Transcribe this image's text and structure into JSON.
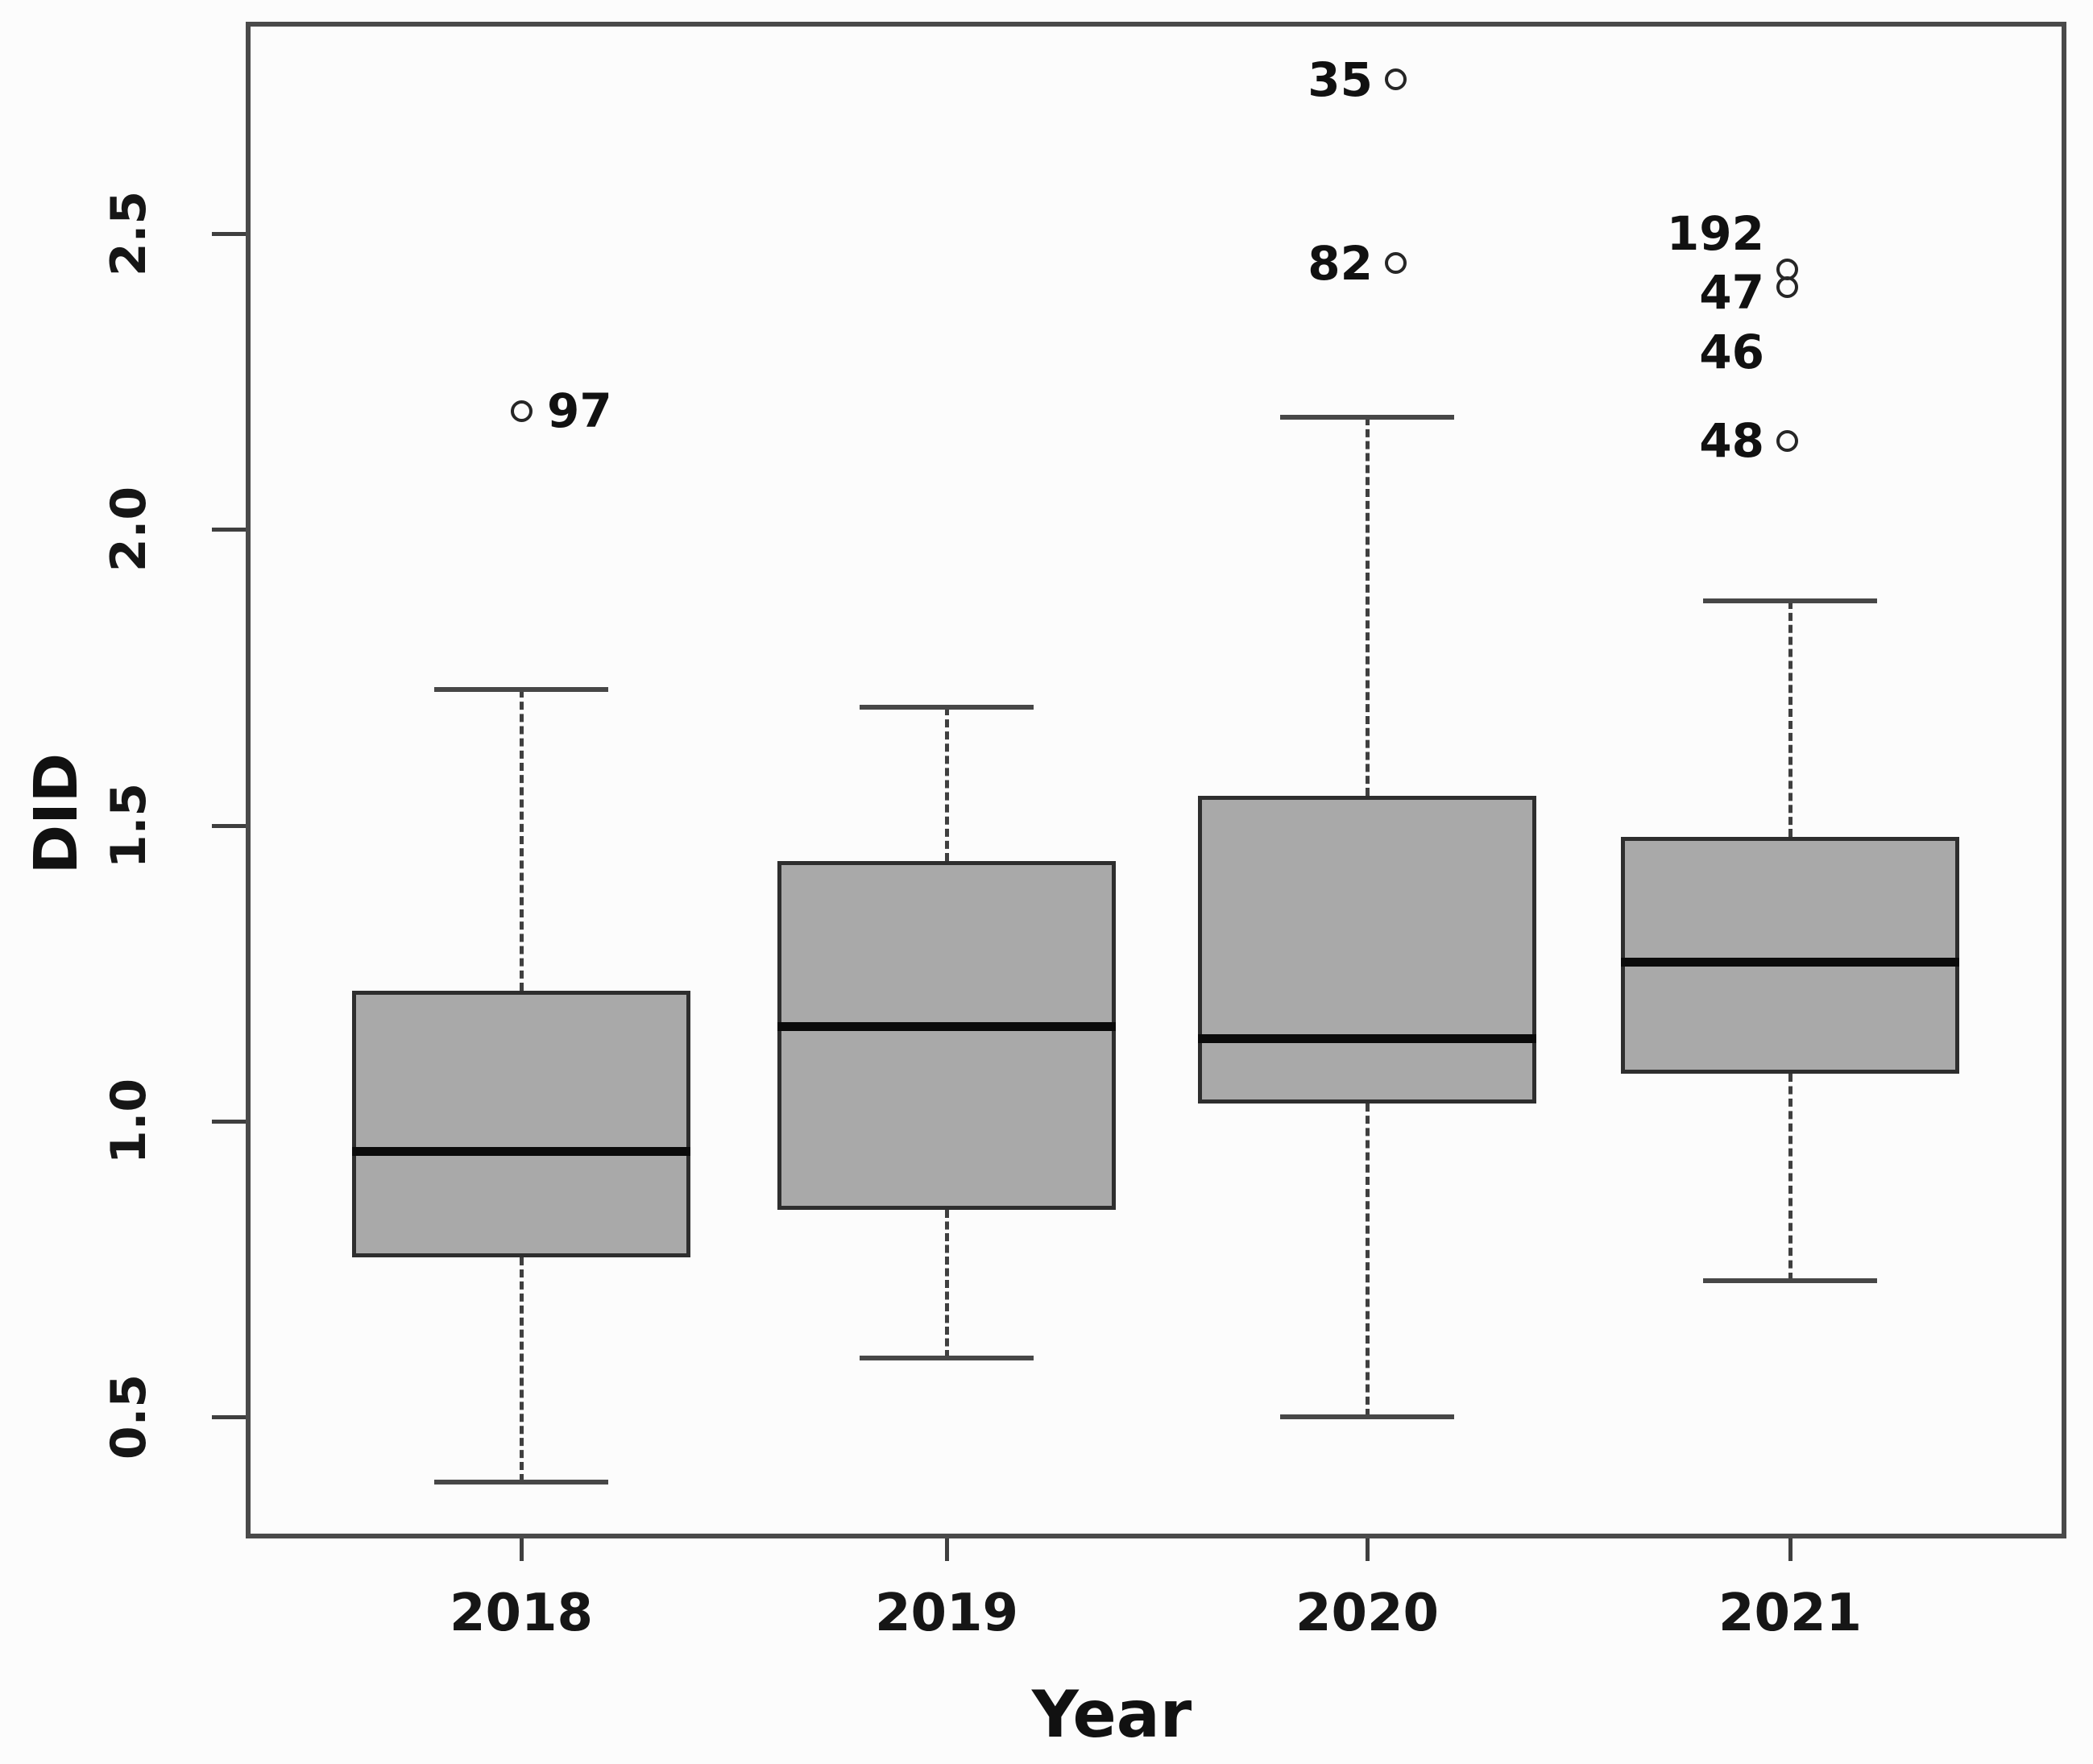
{
  "figure": {
    "type": "r-style-boxplot"
  },
  "chart_data": {
    "type": "boxplot",
    "title": "",
    "xlabel": "Year",
    "ylabel": "DID",
    "categories": [
      "2018",
      "2019",
      "2020",
      "2021"
    ],
    "y_ticks": [
      0.5,
      1.0,
      1.5,
      2.0,
      2.5
    ],
    "ylim": [
      0.29,
      2.86
    ],
    "grid": "off",
    "legend": "none",
    "series": [
      {
        "category": "2018",
        "whisker_low": 0.39,
        "q1": 0.77,
        "median": 0.95,
        "q3": 1.22,
        "whisker_high": 1.73,
        "outliers": [
          {
            "label": "97",
            "value": 2.2,
            "label_value": 2.2,
            "label_side": "right",
            "circle": true
          }
        ]
      },
      {
        "category": "2019",
        "whisker_low": 0.6,
        "q1": 0.85,
        "median": 1.16,
        "q3": 1.44,
        "whisker_high": 1.7,
        "outliers": []
      },
      {
        "category": "2020",
        "whisker_low": 0.5,
        "q1": 1.03,
        "median": 1.14,
        "q3": 1.55,
        "whisker_high": 2.19,
        "outliers": [
          {
            "label": "35",
            "value": 2.76,
            "label_value": 2.76,
            "label_side": "left",
            "circle": true
          },
          {
            "label": "82",
            "value": 2.45,
            "label_value": 2.45,
            "label_side": "left",
            "circle": true
          }
        ]
      },
      {
        "category": "2021",
        "whisker_low": 0.73,
        "q1": 1.08,
        "median": 1.27,
        "q3": 1.48,
        "whisker_high": 1.88,
        "outliers": [
          {
            "label": "192",
            "value": 2.44,
            "label_value": 2.5,
            "label_side": "left",
            "circle": true
          },
          {
            "label": "47",
            "value": 2.41,
            "label_value": 2.4,
            "label_side": "left",
            "circle": true
          },
          {
            "label": "46",
            "value": 2.3,
            "label_value": 2.3,
            "label_side": "left",
            "circle": false
          },
          {
            "label": "48",
            "value": 2.15,
            "label_value": 2.15,
            "label_side": "left",
            "circle": true
          }
        ]
      }
    ],
    "colors": {
      "box_fill": "#a9a9a9",
      "box_border": "#2e2e2e",
      "median": "#0b0b0b",
      "whisker": "#3f3f3f",
      "axis": "#4a4a4a",
      "text": "#111111",
      "background": "#fcfcfc"
    }
  }
}
